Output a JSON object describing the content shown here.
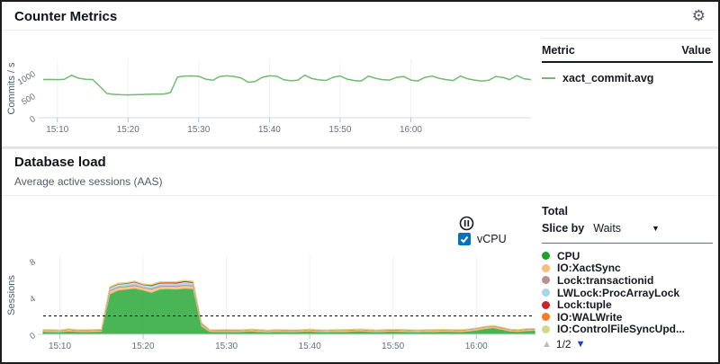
{
  "icons": {
    "settings": "⚙",
    "chevron_down": "▼",
    "page_up": "▲",
    "page_down": "▼"
  },
  "counter_metrics": {
    "title": "Counter Metrics",
    "table": {
      "metric_header": "Metric",
      "value_header": "Value"
    },
    "legend_metric": "xact_commit.avg"
  },
  "database_load": {
    "title": "Database load",
    "subtitle": "Average active sessions (AAS)",
    "vcpu_label": "vCPU",
    "total_label": "Total",
    "slice_by_label": "Slice by",
    "slice_by_value": "Waits",
    "pagination": {
      "page": "1/2"
    }
  },
  "chart_data": [
    {
      "id": "counter",
      "type": "line",
      "ylabel": "Commits / s",
      "ylim": [
        0,
        1300
      ],
      "y_ticks": [
        0,
        500,
        1000
      ],
      "x_tick_labels": [
        "15:10",
        "15:20",
        "15:30",
        "15:40",
        "15:50",
        "16:00"
      ],
      "x_tick_positions": [
        2,
        12,
        22,
        32,
        42,
        52
      ],
      "grid": true,
      "series": [
        {
          "name": "xact_commit.avg",
          "color": "#6fbc6f",
          "values": [
            850,
            852,
            848,
            855,
            945,
            880,
            855,
            850,
            700,
            540,
            520,
            512,
            508,
            512,
            518,
            522,
            528,
            525,
            560,
            905,
            928,
            930,
            922,
            858,
            835,
            920,
            932,
            918,
            885,
            790,
            808,
            900,
            932,
            925,
            848,
            822,
            835,
            948,
            872,
            842,
            830,
            900,
            930,
            858,
            828,
            818,
            928,
            878,
            848,
            838,
            898,
            918,
            838,
            818,
            898,
            928,
            878,
            848,
            828,
            928,
            868,
            838,
            818,
            832,
            918,
            898,
            848,
            938,
            868,
            848
          ]
        }
      ]
    },
    {
      "id": "db_load",
      "type": "area",
      "ylabel": "Sessions",
      "ylim": [
        0,
        8.5
      ],
      "y_ticks": [
        0,
        4,
        8
      ],
      "x_tick_labels": [
        "15:10",
        "15:20",
        "15:30",
        "15:40",
        "15:50",
        "16:00"
      ],
      "x_tick_positions": [
        2,
        12,
        22,
        32,
        42,
        52
      ],
      "grid": true,
      "max_vcpus_line": {
        "value": 2,
        "label": "vCPU",
        "color": "#000000",
        "style": "dashed"
      },
      "series": [
        {
          "name": "CPU",
          "color": "#1da32c",
          "values": [
            0.3,
            0.28,
            0.25,
            0.35,
            0.3,
            0.28,
            0.3,
            0.32,
            4.4,
            4.8,
            4.9,
            5.0,
            4.8,
            4.55,
            4.9,
            4.95,
            4.9,
            5.0,
            4.95,
            0.9,
            0.3,
            0.28,
            0.3,
            0.26,
            0.3,
            0.35,
            0.28,
            0.24,
            0.3,
            0.28,
            0.26,
            0.3,
            0.34,
            0.28,
            0.25,
            0.3,
            0.28,
            0.32,
            0.36,
            0.3,
            0.26,
            0.3,
            0.34,
            0.3,
            0.28,
            0.25,
            0.3,
            0.28,
            0.32,
            0.3,
            0.28,
            0.34,
            0.45,
            0.6,
            0.72,
            0.55,
            0.35,
            0.3,
            0.38,
            0.42
          ]
        },
        {
          "name": "IO:XactSync",
          "color": "#f9bd79",
          "values": [
            0.12,
            0.14,
            0.12,
            0.15,
            0.13,
            0.12,
            0.13,
            0.14,
            0.32,
            0.3,
            0.28,
            0.3,
            0.26,
            0.34,
            0.3,
            0.28,
            0.3,
            0.32,
            0.3,
            0.18,
            0.12,
            0.13,
            0.12,
            0.14,
            0.12,
            0.13,
            0.14,
            0.12,
            0.13,
            0.12,
            0.13,
            0.12,
            0.14,
            0.12,
            0.13,
            0.12,
            0.14,
            0.13,
            0.12,
            0.14,
            0.12,
            0.13,
            0.12,
            0.14,
            0.12,
            0.13,
            0.12,
            0.14,
            0.13,
            0.12,
            0.13,
            0.14,
            0.15,
            0.16,
            0.15,
            0.14,
            0.13,
            0.12,
            0.14,
            0.13
          ]
        },
        {
          "name": "Lock:transactionid",
          "color": "#bb9090",
          "values": [
            0.02,
            0.02,
            0.02,
            0.02,
            0.02,
            0.02,
            0.02,
            0.02,
            0.1,
            0.08,
            0.09,
            0.1,
            0.08,
            0.1,
            0.09,
            0.1,
            0.09,
            0.1,
            0.09,
            0.04,
            0.02,
            0.02,
            0.02,
            0.02,
            0.02,
            0.02,
            0.02,
            0.02,
            0.02,
            0.02,
            0.02,
            0.02,
            0.02,
            0.02,
            0.02,
            0.02,
            0.02,
            0.02,
            0.02,
            0.02,
            0.02,
            0.02,
            0.02,
            0.02,
            0.02,
            0.02,
            0.02,
            0.02,
            0.02,
            0.02,
            0.02,
            0.02,
            0.02,
            0.02,
            0.02,
            0.02,
            0.02,
            0.02,
            0.02,
            0.02
          ]
        },
        {
          "name": "LWLock:ProcArrayLock",
          "color": "#a5d7e8",
          "values": [
            0.03,
            0.03,
            0.03,
            0.03,
            0.03,
            0.03,
            0.03,
            0.03,
            0.25,
            0.28,
            0.26,
            0.28,
            0.25,
            0.3,
            0.28,
            0.26,
            0.28,
            0.3,
            0.28,
            0.08,
            0.03,
            0.03,
            0.03,
            0.03,
            0.03,
            0.03,
            0.03,
            0.03,
            0.03,
            0.03,
            0.03,
            0.03,
            0.03,
            0.03,
            0.03,
            0.03,
            0.03,
            0.03,
            0.03,
            0.03,
            0.03,
            0.03,
            0.03,
            0.03,
            0.03,
            0.03,
            0.03,
            0.03,
            0.03,
            0.03,
            0.03,
            0.03,
            0.03,
            0.03,
            0.03,
            0.03,
            0.03,
            0.03,
            0.03,
            0.03
          ]
        },
        {
          "name": "Lock:tuple",
          "color": "#cc2229",
          "values": [
            0.01,
            0.01,
            0.01,
            0.01,
            0.01,
            0.01,
            0.01,
            0.01,
            0.02,
            0.02,
            0.03,
            0.04,
            0.03,
            0.05,
            0.06,
            0.06,
            0.07,
            0.07,
            0.06,
            0.02,
            0.01,
            0.01,
            0.01,
            0.01,
            0.01,
            0.01,
            0.01,
            0.01,
            0.01,
            0.01,
            0.01,
            0.01,
            0.01,
            0.01,
            0.01,
            0.01,
            0.01,
            0.01,
            0.01,
            0.01,
            0.01,
            0.01,
            0.01,
            0.01,
            0.01,
            0.01,
            0.01,
            0.01,
            0.01,
            0.01,
            0.01,
            0.01,
            0.01,
            0.01,
            0.01,
            0.01,
            0.01,
            0.01,
            0.01,
            0.01
          ]
        },
        {
          "name": "IO:WALWrite",
          "color": "#f57d1f",
          "values": [
            0.02,
            0.02,
            0.02,
            0.02,
            0.02,
            0.02,
            0.02,
            0.02,
            0.05,
            0.05,
            0.04,
            0.05,
            0.04,
            0.05,
            0.05,
            0.04,
            0.05,
            0.05,
            0.05,
            0.03,
            0.02,
            0.02,
            0.02,
            0.02,
            0.02,
            0.02,
            0.02,
            0.02,
            0.02,
            0.02,
            0.02,
            0.02,
            0.02,
            0.02,
            0.02,
            0.02,
            0.02,
            0.02,
            0.02,
            0.02,
            0.02,
            0.02,
            0.02,
            0.02,
            0.02,
            0.02,
            0.02,
            0.02,
            0.02,
            0.02,
            0.02,
            0.02,
            0.02,
            0.02,
            0.02,
            0.02,
            0.02,
            0.02,
            0.02,
            0.02
          ]
        },
        {
          "name": "IO:ControlFileSyncUpd...",
          "color": "#d6d887",
          "values": [
            0.02,
            0.02,
            0.02,
            0.02,
            0.02,
            0.02,
            0.02,
            0.02,
            0.04,
            0.04,
            0.03,
            0.04,
            0.03,
            0.04,
            0.04,
            0.03,
            0.04,
            0.04,
            0.04,
            0.02,
            0.02,
            0.02,
            0.02,
            0.02,
            0.02,
            0.02,
            0.02,
            0.02,
            0.02,
            0.02,
            0.02,
            0.02,
            0.02,
            0.02,
            0.02,
            0.02,
            0.02,
            0.02,
            0.02,
            0.02,
            0.02,
            0.02,
            0.02,
            0.02,
            0.02,
            0.02,
            0.02,
            0.02,
            0.02,
            0.02,
            0.02,
            0.02,
            0.02,
            0.02,
            0.02,
            0.02,
            0.02,
            0.02,
            0.02,
            0.02
          ]
        }
      ]
    }
  ]
}
